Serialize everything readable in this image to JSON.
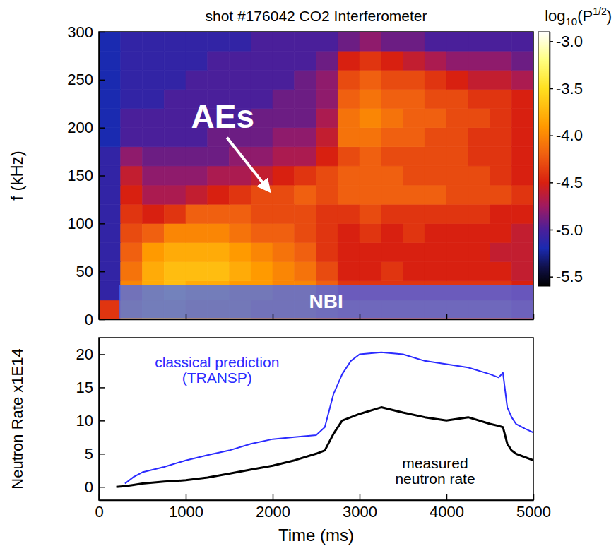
{
  "chart_data": [
    {
      "type": "heatmap",
      "title": "shot #176042 CO2 Interferometer",
      "ylabel": "f (kHz)",
      "xlim": [
        0,
        5000
      ],
      "ylim": [
        0,
        300
      ],
      "xticks": [
        0,
        1000,
        2000,
        3000,
        4000,
        5000
      ],
      "yticks": [
        0,
        50,
        100,
        150,
        200,
        250,
        300
      ],
      "tick_labels": "y",
      "x_edges": [
        0,
        250,
        500,
        750,
        1000,
        1250,
        1500,
        1750,
        2000,
        2250,
        2500,
        2750,
        3000,
        3250,
        3500,
        3750,
        4000,
        4250,
        4500,
        4750,
        5000
      ],
      "y_edges": [
        0,
        20,
        40,
        60,
        80,
        100,
        120,
        140,
        160,
        180,
        200,
        220,
        240,
        260,
        280,
        300
      ],
      "z": [
        [
          -4.4,
          -3.9,
          -3.8,
          -3.8,
          -3.9,
          -3.9,
          -3.9,
          -4.0,
          -4.0,
          -4.0,
          -4.1,
          -4.2,
          -4.2,
          -4.2,
          -4.2,
          -4.2,
          -4.2,
          -4.2,
          -4.2,
          -4.3
        ],
        [
          -5.1,
          -4.0,
          -3.8,
          -3.7,
          -3.8,
          -3.8,
          -3.9,
          -3.9,
          -4.0,
          -4.0,
          -4.2,
          -4.4,
          -4.4,
          -4.4,
          -4.4,
          -4.4,
          -4.4,
          -4.4,
          -4.4,
          -4.5
        ],
        [
          -5.1,
          -4.1,
          -3.8,
          -3.7,
          -3.7,
          -3.7,
          -3.8,
          -3.9,
          -4.0,
          -4.1,
          -4.3,
          -4.5,
          -4.5,
          -4.4,
          -4.5,
          -4.5,
          -4.5,
          -4.5,
          -4.5,
          -4.6
        ],
        [
          -5.1,
          -4.2,
          -3.9,
          -3.8,
          -3.8,
          -3.8,
          -3.9,
          -4.0,
          -4.1,
          -4.2,
          -4.4,
          -4.5,
          -4.5,
          -4.5,
          -4.5,
          -4.5,
          -4.5,
          -4.5,
          -4.6,
          -4.6
        ],
        [
          -5.1,
          -4.3,
          -4.2,
          -4.0,
          -4.0,
          -4.0,
          -4.1,
          -4.2,
          -4.2,
          -4.3,
          -4.4,
          -4.5,
          -4.4,
          -4.5,
          -4.4,
          -4.5,
          -4.5,
          -4.5,
          -4.5,
          -4.6
        ],
        [
          -5.1,
          -4.4,
          -4.5,
          -4.4,
          -4.2,
          -4.2,
          -4.2,
          -4.3,
          -4.3,
          -4.3,
          -4.4,
          -4.4,
          -4.3,
          -4.4,
          -4.4,
          -4.4,
          -4.4,
          -4.4,
          -4.5,
          -4.5
        ],
        [
          -5.1,
          -4.5,
          -4.7,
          -4.7,
          -4.6,
          -4.5,
          -4.4,
          -4.3,
          -4.3,
          -4.2,
          -4.3,
          -4.2,
          -4.2,
          -4.2,
          -4.2,
          -4.2,
          -4.3,
          -4.3,
          -4.3,
          -4.4
        ],
        [
          -5.1,
          -4.6,
          -4.8,
          -4.8,
          -4.8,
          -4.7,
          -4.7,
          -4.6,
          -4.5,
          -4.4,
          -4.3,
          -4.2,
          -4.2,
          -4.2,
          -4.3,
          -4.3,
          -4.3,
          -4.3,
          -4.4,
          -4.5
        ],
        [
          -5.1,
          -4.8,
          -4.9,
          -4.9,
          -4.9,
          -4.9,
          -4.8,
          -4.8,
          -4.7,
          -4.7,
          -4.5,
          -4.3,
          -4.2,
          -4.3,
          -4.3,
          -4.3,
          -4.3,
          -4.4,
          -4.4,
          -4.5
        ],
        [
          -5.2,
          -5.0,
          -5.0,
          -5.0,
          -5.0,
          -4.9,
          -4.9,
          -4.9,
          -4.8,
          -4.8,
          -4.6,
          -4.1,
          -4.1,
          -4.2,
          -4.2,
          -4.3,
          -4.3,
          -4.4,
          -4.4,
          -4.5
        ],
        [
          -5.2,
          -5.0,
          -5.0,
          -5.0,
          -5.0,
          -5.0,
          -5.0,
          -4.9,
          -4.9,
          -4.9,
          -4.7,
          -4.1,
          -4.0,
          -4.1,
          -4.2,
          -4.2,
          -4.3,
          -4.3,
          -4.4,
          -4.5
        ],
        [
          -5.2,
          -5.1,
          -5.1,
          -5.0,
          -5.0,
          -5.0,
          -5.0,
          -5.0,
          -4.9,
          -4.9,
          -4.8,
          -4.2,
          -4.1,
          -4.2,
          -4.2,
          -4.3,
          -4.3,
          -4.4,
          -4.4,
          -4.5
        ],
        [
          -5.2,
          -5.1,
          -5.1,
          -5.1,
          -5.0,
          -5.0,
          -5.0,
          -5.0,
          -5.0,
          -4.9,
          -4.8,
          -4.3,
          -4.2,
          -4.3,
          -4.3,
          -4.4,
          -4.5,
          -4.6,
          -4.6,
          -4.7
        ],
        [
          -5.2,
          -5.1,
          -5.1,
          -5.1,
          -5.1,
          -5.0,
          -5.0,
          -5.0,
          -5.0,
          -5.0,
          -4.9,
          -4.5,
          -4.4,
          -4.5,
          -4.6,
          -4.7,
          -4.8,
          -4.8,
          -4.8,
          -4.9
        ],
        [
          -5.2,
          -5.1,
          -5.1,
          -5.1,
          -5.1,
          -5.1,
          -5.1,
          -5.0,
          -5.0,
          -5.0,
          -5.0,
          -4.9,
          -4.8,
          -4.9,
          -4.9,
          -5.0,
          -5.0,
          -5.0,
          -5.0,
          -5.0
        ]
      ],
      "colorbar": {
        "label": [
          "log",
          "10",
          "(P",
          "1/2",
          ")"
        ],
        "range": [
          -5.6,
          -2.9
        ],
        "ticks": [
          {
            "value": -3,
            "label": "-3.0"
          },
          -3.5,
          {
            "value": -4,
            "label": "-4.0"
          },
          -4.5,
          {
            "value": -5,
            "label": "-5.0"
          },
          -5.5
        ]
      },
      "annotations": [
        {
          "text": "AEs",
          "x": 1425,
          "y": 200,
          "arrow_to": [
            1960,
            134
          ]
        }
      ],
      "regions": [
        {
          "text": "NBI",
          "x": [
            230,
            5000
          ],
          "y": [
            1,
            36
          ]
        }
      ]
    },
    {
      "type": "line",
      "xlabel": "Time (ms)",
      "ylabel": "Neutron Rate x1E14",
      "xlim": [
        0,
        5000
      ],
      "ylim": [
        -2,
        22.5
      ],
      "xticks": [
        0,
        1000,
        2000,
        3000,
        4000,
        5000
      ],
      "yticks": [
        0,
        5,
        10,
        15,
        20
      ],
      "x": [
        0,
        100,
        200,
        300,
        400,
        500,
        750,
        1000,
        1250,
        1500,
        1750,
        2000,
        2250,
        2500,
        2600,
        2700,
        2800,
        2900,
        3000,
        3250,
        3500,
        3750,
        4000,
        4250,
        4500,
        4600,
        4650,
        4700,
        4750,
        4800,
        4900,
        5000
      ],
      "series": [
        {
          "color": "#2b2bff",
          "values": [
            null,
            null,
            null,
            0.5,
            1.5,
            2.2,
            3.0,
            4.0,
            4.8,
            5.5,
            6.5,
            7.2,
            7.5,
            7.8,
            9.0,
            14.0,
            17.0,
            19.0,
            20.0,
            20.3,
            20.0,
            19.0,
            18.5,
            18.0,
            17.0,
            16.5,
            17.2,
            12.0,
            10.5,
            9.5,
            8.8,
            8.2
          ]
        },
        {
          "color": "#000000",
          "values": [
            null,
            null,
            0.0,
            0.1,
            0.3,
            0.5,
            0.8,
            1.0,
            1.4,
            2.0,
            2.6,
            3.2,
            4.0,
            5.0,
            5.5,
            8.0,
            10.0,
            10.5,
            11.0,
            12.0,
            11.2,
            10.5,
            10.0,
            10.5,
            9.5,
            9.2,
            9.0,
            6.5,
            5.5,
            5.0,
            4.5,
            4.0
          ]
        }
      ],
      "annotations": [
        {
          "lines": [
            "classical prediction",
            "(TRANSP)"
          ],
          "x": 1360,
          "y": 18,
          "color": "#2b2bff"
        },
        {
          "lines": [
            "measured",
            "neutron rate"
          ],
          "x": 3870,
          "y": 2.8,
          "color": "#000000"
        }
      ]
    }
  ]
}
